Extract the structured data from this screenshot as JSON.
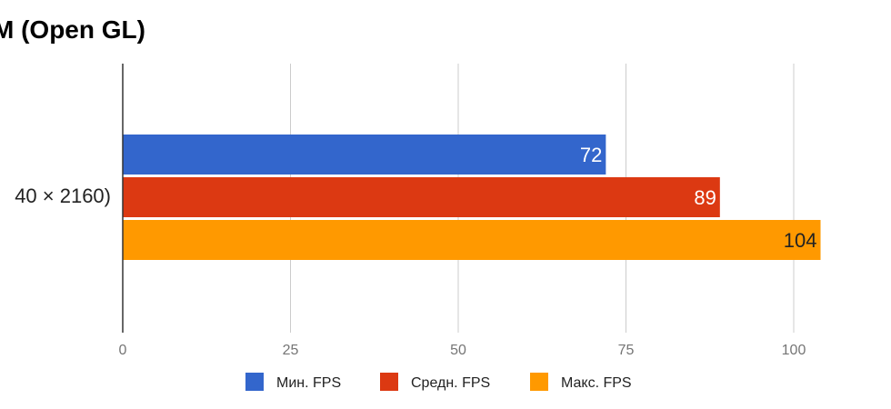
{
  "chart_data": {
    "type": "bar",
    "orientation": "horizontal",
    "title": "M (Open GL)",
    "categories": [
      "40 × 2160)"
    ],
    "series": [
      {
        "name": "Мин. FPS",
        "values": [
          72
        ],
        "color": "#3366cc",
        "label_color": "#ffffff"
      },
      {
        "name": "Средн. FPS",
        "values": [
          89
        ],
        "color": "#dc3912",
        "label_color": "#ffffff"
      },
      {
        "name": "Макс. FPS",
        "values": [
          104
        ],
        "color": "#ff9900",
        "label_color": "#222222"
      }
    ],
    "xlim": [
      0,
      105
    ],
    "xticks": [
      "0",
      "25",
      "50",
      "75",
      "100"
    ],
    "grid": true,
    "legend_position": "bottom"
  }
}
